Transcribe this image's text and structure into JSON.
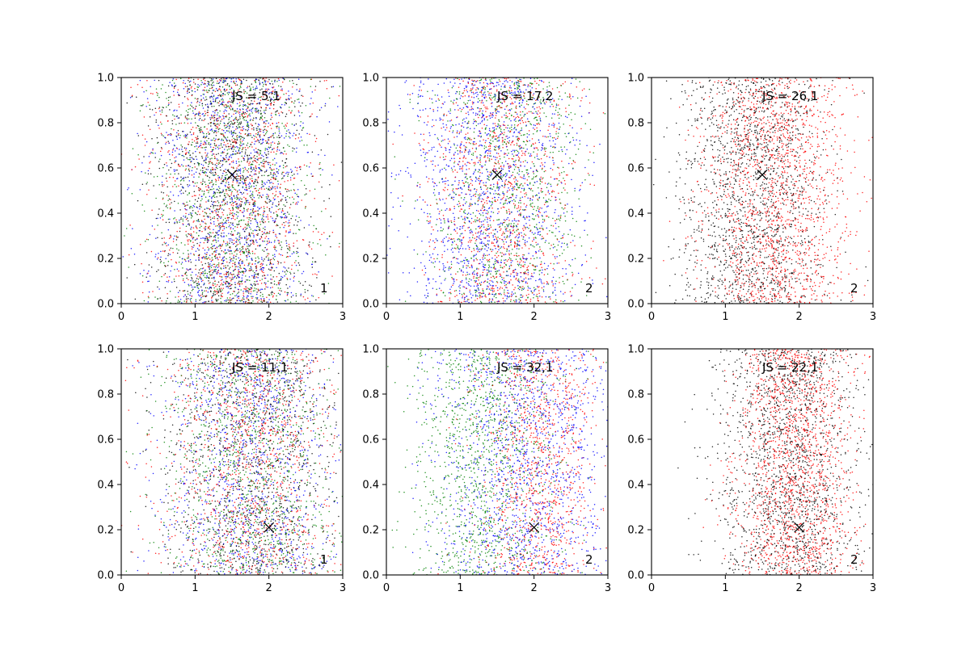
{
  "colors": {
    "blue": "#0000ff",
    "red": "#ff0000",
    "green": "#008000",
    "black": "#000000"
  },
  "chart_data": [
    {
      "type": "scatter",
      "row": 0,
      "col": 0,
      "annotation": "JS = 5,1",
      "corner_label": "1",
      "xlim": [
        0,
        3
      ],
      "ylim": [
        0,
        1
      ],
      "xticks": [
        "0",
        "1",
        "2",
        "3"
      ],
      "yticks": [
        "0.0",
        "0.2",
        "0.4",
        "0.6",
        "0.8",
        "1.0"
      ],
      "marker": {
        "x": 1.5,
        "y": 0.57
      },
      "grid": false,
      "series": [
        {
          "color": "blue",
          "count": 1100,
          "x_mean": 1.5,
          "x_sd": 0.55
        },
        {
          "color": "red",
          "count": 1100,
          "x_mean": 1.5,
          "x_sd": 0.55
        },
        {
          "color": "green",
          "count": 1100,
          "x_mean": 1.5,
          "x_sd": 0.55
        },
        {
          "color": "black",
          "count": 1100,
          "x_mean": 1.5,
          "x_sd": 0.55
        }
      ]
    },
    {
      "type": "scatter",
      "row": 0,
      "col": 1,
      "annotation": "JS = 17,2",
      "corner_label": "2",
      "xlim": [
        0,
        3
      ],
      "ylim": [
        0,
        1
      ],
      "xticks": [
        "0",
        "1",
        "2",
        "3"
      ],
      "yticks": [
        "0.0",
        "0.2",
        "0.4",
        "0.6",
        "0.8",
        "1.0"
      ],
      "marker": {
        "x": 1.5,
        "y": 0.57
      },
      "grid": false,
      "series": [
        {
          "color": "blue",
          "count": 1400,
          "x_mean": 1.4,
          "x_sd": 0.6
        },
        {
          "color": "red",
          "count": 1100,
          "x_mean": 1.55,
          "x_sd": 0.5
        },
        {
          "color": "green",
          "count": 1000,
          "x_mean": 1.65,
          "x_sd": 0.5
        }
      ]
    },
    {
      "type": "scatter",
      "row": 0,
      "col": 2,
      "annotation": "JS = 26,1",
      "corner_label": "2",
      "xlim": [
        0,
        3
      ],
      "ylim": [
        0,
        1
      ],
      "xticks": [
        "0",
        "1",
        "2",
        "3"
      ],
      "yticks": [
        "0.0",
        "0.2",
        "0.4",
        "0.6",
        "0.8",
        "1.0"
      ],
      "marker": {
        "x": 1.5,
        "y": 0.57
      },
      "grid": false,
      "series": [
        {
          "color": "black",
          "count": 1600,
          "x_mean": 1.35,
          "x_sd": 0.5
        },
        {
          "color": "red",
          "count": 1600,
          "x_mean": 1.7,
          "x_sd": 0.5
        }
      ]
    },
    {
      "type": "scatter",
      "row": 1,
      "col": 0,
      "annotation": "JS = 11,1",
      "corner_label": "1",
      "xlim": [
        0,
        3
      ],
      "ylim": [
        0,
        1
      ],
      "xticks": [
        "0",
        "1",
        "2",
        "3"
      ],
      "yticks": [
        "0.0",
        "0.2",
        "0.4",
        "0.6",
        "0.8",
        "1.0"
      ],
      "marker": {
        "x": 2.0,
        "y": 0.21
      },
      "grid": false,
      "series": [
        {
          "color": "blue",
          "count": 1100,
          "x_mean": 1.75,
          "x_sd": 0.6
        },
        {
          "color": "red",
          "count": 1100,
          "x_mean": 1.75,
          "x_sd": 0.6
        },
        {
          "color": "green",
          "count": 1100,
          "x_mean": 1.75,
          "x_sd": 0.6
        },
        {
          "color": "black",
          "count": 1100,
          "x_mean": 1.75,
          "x_sd": 0.6
        }
      ]
    },
    {
      "type": "scatter",
      "row": 1,
      "col": 1,
      "annotation": "JS = 32,1",
      "corner_label": "2",
      "xlim": [
        0,
        3
      ],
      "ylim": [
        0,
        1
      ],
      "xticks": [
        "0",
        "1",
        "2",
        "3"
      ],
      "yticks": [
        "0.0",
        "0.2",
        "0.4",
        "0.6",
        "0.8",
        "1.0"
      ],
      "marker": {
        "x": 2.0,
        "y": 0.21
      },
      "grid": false,
      "series": [
        {
          "color": "blue",
          "count": 1400,
          "x_mean": 1.9,
          "x_sd": 0.6
        },
        {
          "color": "green",
          "count": 1200,
          "x_mean": 1.3,
          "x_sd": 0.5
        },
        {
          "color": "red",
          "count": 1000,
          "x_mean": 2.05,
          "x_sd": 0.4
        }
      ]
    },
    {
      "type": "scatter",
      "row": 1,
      "col": 2,
      "annotation": "JS = 22,1",
      "corner_label": "2",
      "xlim": [
        0,
        3
      ],
      "ylim": [
        0,
        1
      ],
      "xticks": [
        "0",
        "1",
        "2",
        "3"
      ],
      "yticks": [
        "0.0",
        "0.2",
        "0.4",
        "0.6",
        "0.8",
        "1.0"
      ],
      "marker": {
        "x": 2.0,
        "y": 0.21
      },
      "grid": false,
      "series": [
        {
          "color": "black",
          "count": 1600,
          "x_mean": 1.85,
          "x_sd": 0.5
        },
        {
          "color": "red",
          "count": 1600,
          "x_mean": 1.95,
          "x_sd": 0.4
        }
      ]
    }
  ]
}
